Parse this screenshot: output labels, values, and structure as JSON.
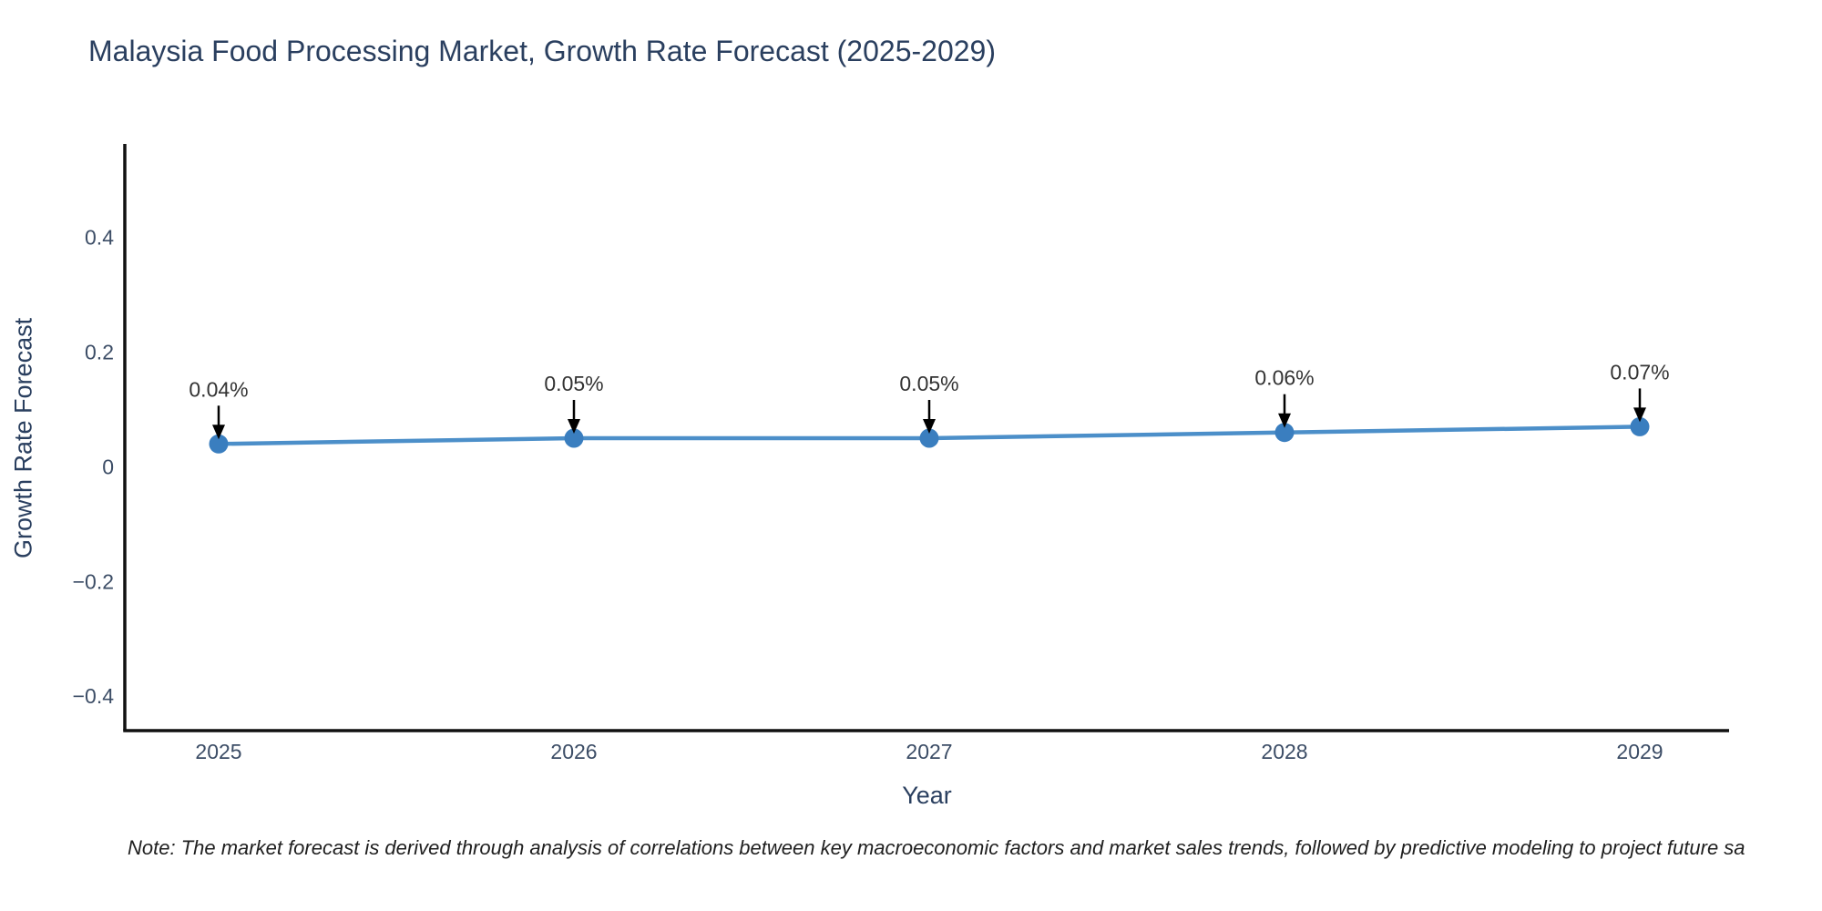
{
  "chart_data": {
    "type": "line",
    "title": "Malaysia Food Processing Market, Growth Rate Forecast (2025-2029)",
    "xlabel": "Year",
    "ylabel": "Growth Rate Forecast",
    "categories": [
      "2025",
      "2026",
      "2027",
      "2028",
      "2029"
    ],
    "series": [
      {
        "name": "Growth Rate Forecast",
        "values": [
          0.04,
          0.05,
          0.05,
          0.06,
          0.07
        ],
        "point_labels": [
          "0.04%",
          "0.05%",
          "0.05%",
          "0.06%",
          "0.07%"
        ]
      }
    ],
    "ylim": [
      -0.46,
      0.56
    ],
    "ytick_values": [
      0.4,
      0.2,
      0,
      -0.2,
      -0.4
    ],
    "ytick_labels": [
      "0.4",
      "0.2",
      "0",
      "−0.2",
      "−0.4"
    ],
    "grid": false,
    "legend_position": "none",
    "annotations_style": "value label with downward arrow to each point",
    "colors": {
      "line": "#4c8fc9",
      "marker": "#3a7ebf",
      "arrow": "#000000",
      "axis_line": "#111111",
      "title_text": "#2a3f5f",
      "tick_text": "#3c4d66",
      "annotation_text": "#333333",
      "background": "#ffffff"
    },
    "note": "Note: The market forecast is derived through analysis of correlations between key macroeconomic factors and market sales trends, followed by predictive modeling to project future sa"
  }
}
